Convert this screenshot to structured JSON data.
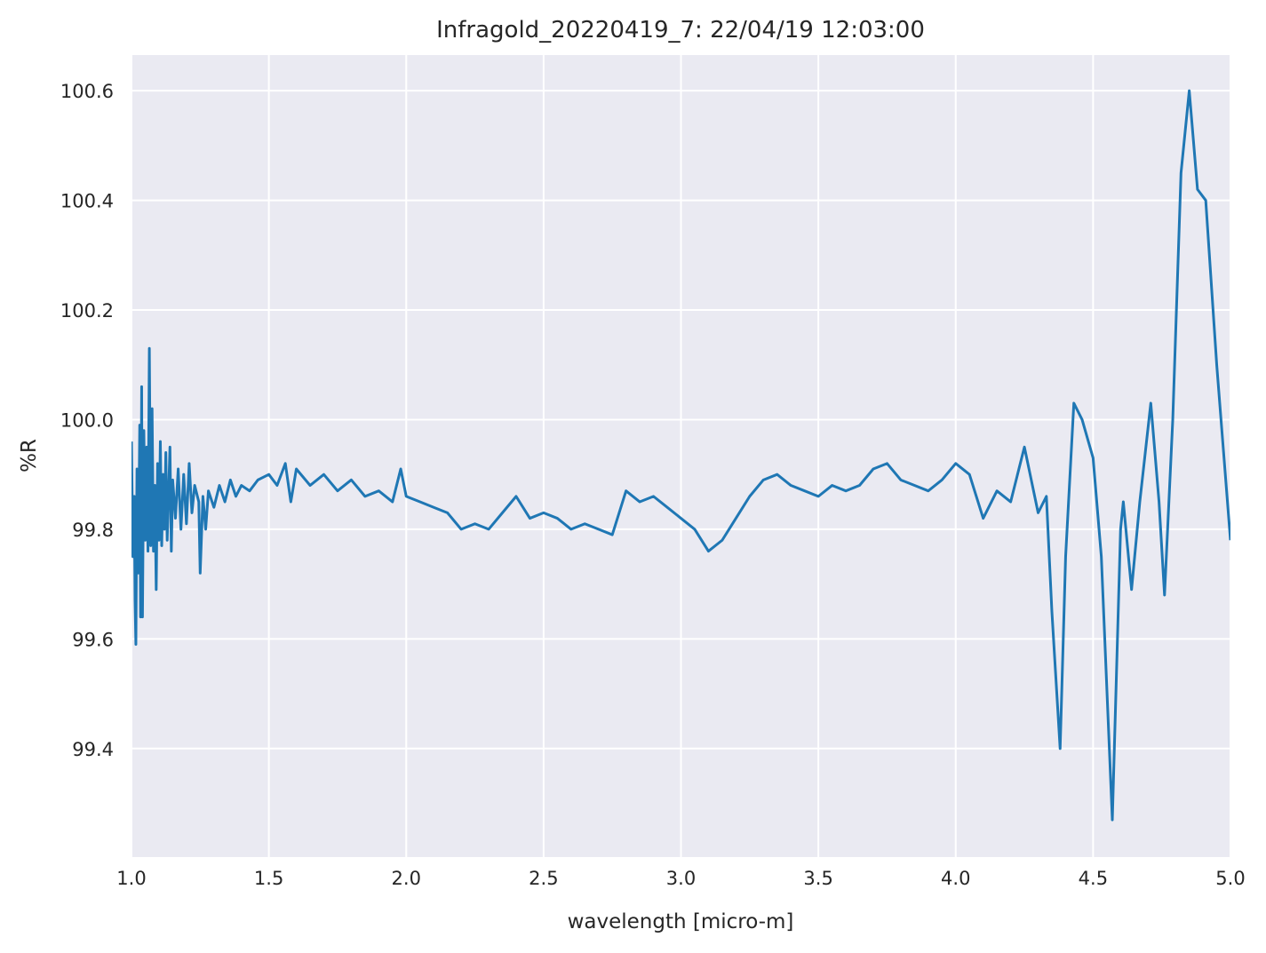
{
  "chart_data": {
    "type": "line",
    "title": "Infragold_20220419_7:  22/04/19 12:03:00",
    "xlabel": "wavelength [micro-m]",
    "ylabel": "%R",
    "xlim": [
      1.0,
      5.0
    ],
    "ylim": [
      99.202,
      100.665
    ],
    "xticks": [
      {
        "value": 1.0,
        "label": "1.0"
      },
      1.5,
      {
        "value": 2.0,
        "label": "2.0"
      },
      2.5,
      {
        "value": 3.0,
        "label": "3.0"
      },
      3.5,
      {
        "value": 4.0,
        "label": "4.0"
      },
      4.5,
      {
        "value": 5.0,
        "label": "5.0"
      }
    ],
    "yticks": [
      99.4,
      99.6,
      99.8,
      {
        "value": 100.0,
        "label": "100.0"
      },
      100.2,
      100.4,
      100.6
    ],
    "grid": true,
    "series": [
      {
        "color": "#1f77b4",
        "x": [
          1.0,
          1.005,
          1.01,
          1.013,
          1.016,
          1.02,
          1.025,
          1.03,
          1.033,
          1.037,
          1.04,
          1.045,
          1.05,
          1.055,
          1.06,
          1.065,
          1.07,
          1.075,
          1.08,
          1.085,
          1.09,
          1.095,
          1.1,
          1.105,
          1.11,
          1.115,
          1.12,
          1.125,
          1.13,
          1.14,
          1.145,
          1.15,
          1.16,
          1.17,
          1.18,
          1.19,
          1.2,
          1.21,
          1.22,
          1.23,
          1.245,
          1.25,
          1.26,
          1.27,
          1.28,
          1.3,
          1.32,
          1.34,
          1.36,
          1.38,
          1.4,
          1.43,
          1.46,
          1.5,
          1.53,
          1.56,
          1.58,
          1.6,
          1.65,
          1.7,
          1.75,
          1.8,
          1.85,
          1.9,
          1.95,
          1.98,
          2.0,
          2.05,
          2.1,
          2.15,
          2.2,
          2.25,
          2.3,
          2.35,
          2.4,
          2.45,
          2.5,
          2.55,
          2.6,
          2.65,
          2.7,
          2.75,
          2.8,
          2.85,
          2.9,
          2.95,
          3.0,
          3.05,
          3.1,
          3.15,
          3.2,
          3.25,
          3.3,
          3.35,
          3.4,
          3.45,
          3.5,
          3.55,
          3.6,
          3.65,
          3.7,
          3.75,
          3.8,
          3.85,
          3.9,
          3.95,
          4.0,
          4.05,
          4.1,
          4.15,
          4.2,
          4.25,
          4.3,
          4.33,
          4.35,
          4.38,
          4.4,
          4.43,
          4.46,
          4.5,
          4.53,
          4.57,
          4.6,
          4.61,
          4.64,
          4.67,
          4.71,
          4.74,
          4.76,
          4.79,
          4.82,
          4.85,
          4.88,
          4.91,
          4.95,
          5.0
        ],
        "values": [
          99.96,
          99.75,
          99.86,
          99.67,
          99.59,
          99.91,
          99.72,
          99.99,
          99.64,
          100.06,
          99.64,
          99.98,
          99.78,
          99.95,
          99.76,
          100.13,
          99.77,
          100.02,
          99.76,
          99.88,
          99.69,
          99.92,
          99.78,
          99.96,
          99.77,
          99.9,
          99.8,
          99.94,
          99.78,
          99.95,
          99.76,
          99.89,
          99.82,
          99.91,
          99.8,
          99.9,
          99.81,
          99.92,
          99.83,
          99.88,
          99.85,
          99.72,
          99.86,
          99.8,
          99.87,
          99.84,
          99.88,
          99.85,
          99.89,
          99.86,
          99.88,
          99.87,
          99.89,
          99.9,
          99.88,
          99.92,
          99.85,
          99.91,
          99.88,
          99.9,
          99.87,
          99.89,
          99.86,
          99.87,
          99.85,
          99.91,
          99.86,
          99.85,
          99.84,
          99.83,
          99.8,
          99.81,
          99.8,
          99.83,
          99.86,
          99.82,
          99.83,
          99.82,
          99.8,
          99.81,
          99.8,
          99.79,
          99.87,
          99.85,
          99.86,
          99.84,
          99.82,
          99.8,
          99.76,
          99.78,
          99.82,
          99.86,
          99.89,
          99.9,
          99.88,
          99.87,
          99.86,
          99.88,
          99.87,
          99.88,
          99.91,
          99.92,
          99.89,
          99.88,
          99.87,
          99.89,
          99.92,
          99.9,
          99.82,
          99.87,
          99.85,
          99.95,
          99.83,
          99.86,
          99.65,
          99.4,
          99.75,
          100.03,
          100.0,
          99.93,
          99.75,
          99.27,
          99.8,
          99.85,
          99.69,
          99.85,
          100.03,
          99.85,
          99.68,
          100.0,
          100.45,
          100.6,
          100.42,
          100.4,
          100.1,
          99.78
        ]
      }
    ]
  }
}
